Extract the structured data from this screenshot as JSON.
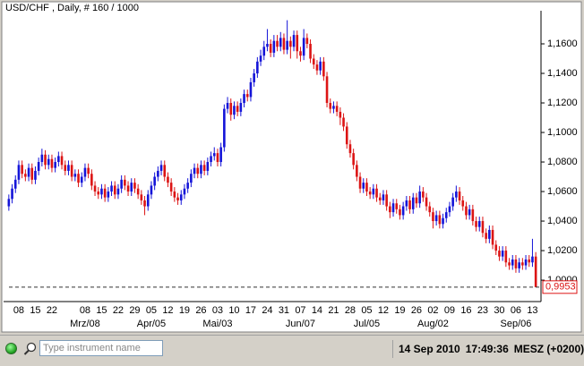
{
  "chart_data": {
    "type": "candlestick",
    "title": "USD/CHF , Daily, # 160 / 1000",
    "up_color": "#1414d8",
    "down_color": "#dc1414",
    "ylim": [
      0.9855,
      1.1806
    ],
    "yticks": [
      {
        "value": 1.0,
        "label": "1,0000"
      },
      {
        "value": 1.02,
        "label": "1,0200"
      },
      {
        "value": 1.04,
        "label": "1,0400"
      },
      {
        "value": 1.06,
        "label": "1,0600"
      },
      {
        "value": 1.08,
        "label": "1,0800"
      },
      {
        "value": 1.1,
        "label": "1,1000"
      },
      {
        "value": 1.12,
        "label": "1,1200"
      },
      {
        "value": 1.14,
        "label": "1,1400"
      },
      {
        "value": 1.16,
        "label": "1,1600"
      }
    ],
    "last_price": {
      "value": 0.9953,
      "label": "0,9953"
    },
    "categories": [
      null,
      null,
      null,
      "08",
      null,
      null,
      null,
      null,
      "15",
      null,
      null,
      null,
      null,
      "22",
      null,
      null,
      null,
      null,
      null,
      null,
      null,
      null,
      null,
      "08",
      null,
      null,
      null,
      null,
      "15",
      null,
      null,
      null,
      null,
      "22",
      null,
      null,
      null,
      null,
      "29",
      null,
      null,
      null,
      null,
      "05",
      null,
      null,
      null,
      null,
      "12",
      null,
      null,
      null,
      null,
      "19",
      null,
      null,
      null,
      null,
      "26",
      null,
      null,
      null,
      null,
      "03",
      null,
      null,
      null,
      null,
      "10",
      null,
      null,
      null,
      null,
      "17",
      null,
      null,
      null,
      null,
      "24",
      null,
      null,
      null,
      null,
      "31",
      null,
      null,
      null,
      null,
      "07",
      null,
      null,
      null,
      null,
      "14",
      null,
      null,
      null,
      null,
      "21",
      null,
      null,
      null,
      null,
      "28",
      null,
      null,
      null,
      null,
      "05",
      null,
      null,
      null,
      null,
      "12",
      null,
      null,
      null,
      null,
      "19",
      null,
      null,
      null,
      null,
      "26",
      null,
      null,
      null,
      null,
      "02",
      null,
      null,
      null,
      null,
      "09",
      null,
      null,
      null,
      null,
      "16",
      null,
      null,
      null,
      null,
      "23",
      null,
      null,
      null,
      null,
      "30",
      null,
      null,
      null,
      null,
      "06",
      null,
      null,
      null,
      null,
      "13",
      null
    ],
    "month_labels": [
      null,
      null,
      null,
      null,
      null,
      null,
      null,
      null,
      null,
      null,
      null,
      null,
      null,
      null,
      null,
      null,
      null,
      null,
      null,
      null,
      null,
      null,
      null,
      "Mrz/08",
      null,
      null,
      null,
      null,
      null,
      null,
      null,
      null,
      null,
      null,
      null,
      null,
      null,
      null,
      null,
      null,
      null,
      null,
      null,
      "Apr/05",
      null,
      null,
      null,
      null,
      null,
      null,
      null,
      null,
      null,
      null,
      null,
      null,
      null,
      null,
      null,
      null,
      null,
      null,
      null,
      "Mai/03",
      null,
      null,
      null,
      null,
      null,
      null,
      null,
      null,
      null,
      null,
      null,
      null,
      null,
      null,
      null,
      null,
      null,
      null,
      null,
      null,
      null,
      null,
      null,
      null,
      "Jun/07",
      null,
      null,
      null,
      null,
      null,
      null,
      null,
      null,
      null,
      null,
      null,
      null,
      null,
      null,
      null,
      null,
      null,
      null,
      null,
      "Jul/05",
      null,
      null,
      null,
      null,
      null,
      null,
      null,
      null,
      null,
      null,
      null,
      null,
      null,
      null,
      null,
      null,
      null,
      null,
      null,
      "Aug/02",
      null,
      null,
      null,
      null,
      null,
      null,
      null,
      null,
      null,
      null,
      null,
      null,
      null,
      null,
      null,
      null,
      null,
      null,
      null,
      null,
      null,
      null,
      null,
      null,
      "Sep/06",
      null,
      null,
      null,
      null,
      null,
      null
    ],
    "ohlc": [
      [
        1.05,
        1.058,
        1.047,
        1.055
      ],
      [
        1.055,
        1.065,
        1.052,
        1.062
      ],
      [
        1.062,
        1.071,
        1.059,
        1.068
      ],
      [
        1.068,
        1.081,
        1.065,
        1.078
      ],
      [
        1.078,
        1.081,
        1.069,
        1.072
      ],
      [
        1.072,
        1.075,
        1.067,
        1.07
      ],
      [
        1.07,
        1.079,
        1.067,
        1.076
      ],
      [
        1.076,
        1.079,
        1.065,
        1.068
      ],
      [
        1.068,
        1.077,
        1.065,
        1.074
      ],
      [
        1.074,
        1.083,
        1.071,
        1.08
      ],
      [
        1.08,
        1.089,
        1.077,
        1.085
      ],
      [
        1.085,
        1.088,
        1.075,
        1.078
      ],
      [
        1.078,
        1.085,
        1.075,
        1.082
      ],
      [
        1.082,
        1.085,
        1.073,
        1.076
      ],
      [
        1.076,
        1.083,
        1.073,
        1.08
      ],
      [
        1.08,
        1.087,
        1.077,
        1.084
      ],
      [
        1.084,
        1.087,
        1.075,
        1.078
      ],
      [
        1.078,
        1.081,
        1.071,
        1.074
      ],
      [
        1.074,
        1.081,
        1.071,
        1.078
      ],
      [
        1.078,
        1.081,
        1.067,
        1.07
      ],
      [
        1.07,
        1.075,
        1.067,
        1.072
      ],
      [
        1.072,
        1.075,
        1.063,
        1.066
      ],
      [
        1.066,
        1.073,
        1.063,
        1.07
      ],
      [
        1.07,
        1.079,
        1.067,
        1.076
      ],
      [
        1.076,
        1.079,
        1.069,
        1.072
      ],
      [
        1.072,
        1.075,
        1.061,
        1.064
      ],
      [
        1.064,
        1.067,
        1.057,
        1.06
      ],
      [
        1.06,
        1.063,
        1.055,
        1.058
      ],
      [
        1.058,
        1.065,
        1.055,
        1.062
      ],
      [
        1.062,
        1.065,
        1.053,
        1.056
      ],
      [
        1.056,
        1.063,
        1.053,
        1.06
      ],
      [
        1.06,
        1.067,
        1.057,
        1.064
      ],
      [
        1.064,
        1.067,
        1.055,
        1.058
      ],
      [
        1.058,
        1.065,
        1.055,
        1.062
      ],
      [
        1.062,
        1.071,
        1.059,
        1.068
      ],
      [
        1.068,
        1.071,
        1.061,
        1.064
      ],
      [
        1.064,
        1.067,
        1.057,
        1.06
      ],
      [
        1.06,
        1.069,
        1.057,
        1.066
      ],
      [
        1.066,
        1.069,
        1.059,
        1.062
      ],
      [
        1.062,
        1.065,
        1.055,
        1.058
      ],
      [
        1.058,
        1.061,
        1.051,
        1.054
      ],
      [
        1.054,
        1.057,
        1.044,
        1.05
      ],
      [
        1.05,
        1.061,
        1.047,
        1.058
      ],
      [
        1.058,
        1.067,
        1.055,
        1.064
      ],
      [
        1.064,
        1.073,
        1.061,
        1.07
      ],
      [
        1.07,
        1.077,
        1.067,
        1.074
      ],
      [
        1.074,
        1.081,
        1.071,
        1.078
      ],
      [
        1.078,
        1.081,
        1.067,
        1.07
      ],
      [
        1.07,
        1.073,
        1.063,
        1.066
      ],
      [
        1.066,
        1.069,
        1.057,
        1.06
      ],
      [
        1.06,
        1.063,
        1.053,
        1.056
      ],
      [
        1.056,
        1.059,
        1.051,
        1.054
      ],
      [
        1.054,
        1.061,
        1.051,
        1.058
      ],
      [
        1.058,
        1.065,
        1.055,
        1.062
      ],
      [
        1.062,
        1.069,
        1.059,
        1.066
      ],
      [
        1.066,
        1.075,
        1.063,
        1.072
      ],
      [
        1.072,
        1.079,
        1.069,
        1.076
      ],
      [
        1.076,
        1.079,
        1.069,
        1.072
      ],
      [
        1.072,
        1.081,
        1.069,
        1.078
      ],
      [
        1.078,
        1.081,
        1.071,
        1.074
      ],
      [
        1.074,
        1.083,
        1.071,
        1.08
      ],
      [
        1.08,
        1.087,
        1.077,
        1.084
      ],
      [
        1.084,
        1.09,
        1.081,
        1.086
      ],
      [
        1.086,
        1.089,
        1.077,
        1.08
      ],
      [
        1.08,
        1.093,
        1.077,
        1.09
      ],
      [
        1.09,
        1.119,
        1.087,
        1.116
      ],
      [
        1.116,
        1.124,
        1.113,
        1.12
      ],
      [
        1.12,
        1.123,
        1.108,
        1.112
      ],
      [
        1.112,
        1.121,
        1.109,
        1.118
      ],
      [
        1.118,
        1.121,
        1.111,
        1.114
      ],
      [
        1.114,
        1.123,
        1.111,
        1.12
      ],
      [
        1.12,
        1.129,
        1.117,
        1.126
      ],
      [
        1.126,
        1.129,
        1.121,
        1.124
      ],
      [
        1.124,
        1.137,
        1.121,
        1.134
      ],
      [
        1.134,
        1.143,
        1.131,
        1.14
      ],
      [
        1.14,
        1.151,
        1.137,
        1.148
      ],
      [
        1.148,
        1.156,
        1.145,
        1.152
      ],
      [
        1.152,
        1.162,
        1.149,
        1.158
      ],
      [
        1.158,
        1.17,
        1.155,
        1.16
      ],
      [
        1.16,
        1.163,
        1.151,
        1.154
      ],
      [
        1.154,
        1.166,
        1.151,
        1.162
      ],
      [
        1.162,
        1.166,
        1.155,
        1.158
      ],
      [
        1.158,
        1.168,
        1.155,
        1.164
      ],
      [
        1.164,
        1.167,
        1.153,
        1.156
      ],
      [
        1.156,
        1.176,
        1.153,
        1.162
      ],
      [
        1.162,
        1.165,
        1.15,
        1.158
      ],
      [
        1.158,
        1.169,
        1.155,
        1.166
      ],
      [
        1.166,
        1.169,
        1.15,
        1.155
      ],
      [
        1.155,
        1.158,
        1.148,
        1.152
      ],
      [
        1.152,
        1.17,
        1.149,
        1.164
      ],
      [
        1.164,
        1.167,
        1.157,
        1.16
      ],
      [
        1.16,
        1.163,
        1.147,
        1.15
      ],
      [
        1.15,
        1.153,
        1.143,
        1.146
      ],
      [
        1.146,
        1.149,
        1.139,
        1.142
      ],
      [
        1.142,
        1.151,
        1.139,
        1.148
      ],
      [
        1.148,
        1.151,
        1.135,
        1.138
      ],
      [
        1.138,
        1.141,
        1.117,
        1.12
      ],
      [
        1.12,
        1.123,
        1.113,
        1.116
      ],
      [
        1.116,
        1.121,
        1.113,
        1.118
      ],
      [
        1.118,
        1.121,
        1.111,
        1.114
      ],
      [
        1.114,
        1.117,
        1.105,
        1.11
      ],
      [
        1.11,
        1.113,
        1.101,
        1.104
      ],
      [
        1.104,
        1.107,
        1.089,
        1.092
      ],
      [
        1.092,
        1.095,
        1.083,
        1.086
      ],
      [
        1.086,
        1.089,
        1.075,
        1.078
      ],
      [
        1.078,
        1.081,
        1.067,
        1.07
      ],
      [
        1.07,
        1.073,
        1.059,
        1.062
      ],
      [
        1.062,
        1.069,
        1.059,
        1.066
      ],
      [
        1.066,
        1.069,
        1.057,
        1.06
      ],
      [
        1.06,
        1.063,
        1.055,
        1.058
      ],
      [
        1.058,
        1.065,
        1.055,
        1.062
      ],
      [
        1.062,
        1.065,
        1.053,
        1.056
      ],
      [
        1.056,
        1.059,
        1.051,
        1.054
      ],
      [
        1.054,
        1.061,
        1.051,
        1.058
      ],
      [
        1.058,
        1.061,
        1.047,
        1.05
      ],
      [
        1.05,
        1.053,
        1.042,
        1.046
      ],
      [
        1.046,
        1.055,
        1.043,
        1.052
      ],
      [
        1.052,
        1.055,
        1.045,
        1.048
      ],
      [
        1.048,
        1.051,
        1.041,
        1.044
      ],
      [
        1.044,
        1.053,
        1.041,
        1.05
      ],
      [
        1.05,
        1.057,
        1.047,
        1.054
      ],
      [
        1.054,
        1.057,
        1.045,
        1.048
      ],
      [
        1.048,
        1.059,
        1.045,
        1.056
      ],
      [
        1.056,
        1.059,
        1.049,
        1.052
      ],
      [
        1.052,
        1.064,
        1.049,
        1.06
      ],
      [
        1.06,
        1.063,
        1.053,
        1.056
      ],
      [
        1.056,
        1.059,
        1.047,
        1.05
      ],
      [
        1.05,
        1.053,
        1.043,
        1.046
      ],
      [
        1.046,
        1.049,
        1.035,
        1.04
      ],
      [
        1.04,
        1.047,
        1.037,
        1.044
      ],
      [
        1.044,
        1.047,
        1.035,
        1.038
      ],
      [
        1.038,
        1.045,
        1.035,
        1.042
      ],
      [
        1.042,
        1.049,
        1.039,
        1.046
      ],
      [
        1.046,
        1.053,
        1.043,
        1.05
      ],
      [
        1.05,
        1.059,
        1.047,
        1.056
      ],
      [
        1.056,
        1.064,
        1.053,
        1.06
      ],
      [
        1.06,
        1.063,
        1.051,
        1.054
      ],
      [
        1.054,
        1.057,
        1.047,
        1.05
      ],
      [
        1.05,
        1.053,
        1.041,
        1.044
      ],
      [
        1.044,
        1.051,
        1.041,
        1.048
      ],
      [
        1.048,
        1.051,
        1.037,
        1.04
      ],
      [
        1.04,
        1.043,
        1.033,
        1.036
      ],
      [
        1.036,
        1.043,
        1.033,
        1.04
      ],
      [
        1.04,
        1.043,
        1.029,
        1.032
      ],
      [
        1.032,
        1.035,
        1.025,
        1.028
      ],
      [
        1.028,
        1.037,
        1.025,
        1.034
      ],
      [
        1.034,
        1.037,
        1.021,
        1.024
      ],
      [
        1.024,
        1.027,
        1.017,
        1.02
      ],
      [
        1.02,
        1.023,
        1.013,
        1.016
      ],
      [
        1.016,
        1.023,
        1.013,
        1.02
      ],
      [
        1.02,
        1.023,
        1.009,
        1.012
      ],
      [
        1.012,
        1.015,
        1.007,
        1.01
      ],
      [
        1.01,
        1.017,
        1.007,
        1.014
      ],
      [
        1.014,
        1.017,
        1.005,
        1.008
      ],
      [
        1.008,
        1.015,
        1.005,
        1.012
      ],
      [
        1.012,
        1.015,
        1.007,
        1.01
      ],
      [
        1.01,
        1.017,
        1.007,
        1.014
      ],
      [
        1.014,
        1.017,
        1.009,
        1.012
      ],
      [
        1.012,
        1.028,
        1.009,
        1.016
      ],
      [
        1.016,
        1.019,
        0.9953,
        0.9953
      ]
    ]
  },
  "toolbar": {
    "search_placeholder": "Type instrument name",
    "date": "14 Sep 2010",
    "time": "17:49:36",
    "timezone": "MESZ (+0200)"
  }
}
